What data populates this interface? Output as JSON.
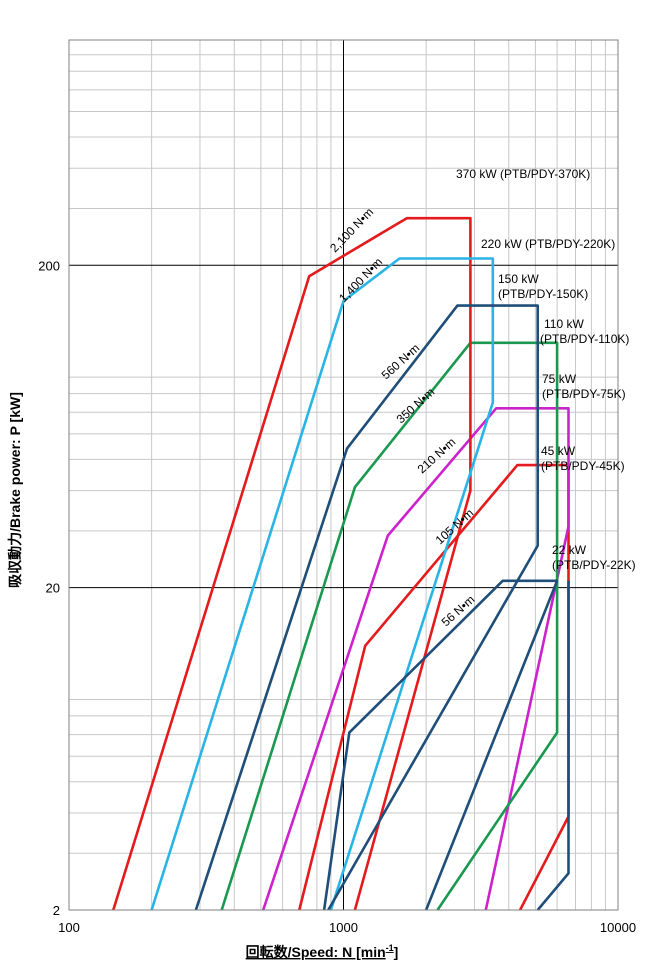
{
  "chart_data": {
    "type": "line",
    "x_scale": "log",
    "y_scale": "log",
    "xlim": [
      100,
      10000
    ],
    "ylim": [
      2,
      1000
    ],
    "xlabel": "回転数/Speed: N [min",
    "xlabel_sup": "-1",
    "xlabel_end": "]",
    "ylabel": "吸収動力/Brake power: P [kW]",
    "x_ticks": [
      {
        "v": 100,
        "label": "100"
      },
      {
        "v": 1000,
        "label": "1000"
      },
      {
        "v": 10000,
        "label": "10000"
      }
    ],
    "y_ticks": [
      {
        "v": 2,
        "label": "2"
      },
      {
        "v": 20,
        "label": "20"
      },
      {
        "v": 200,
        "label": "200"
      }
    ],
    "grid": true,
    "series": [
      {
        "color": "#e41a1c",
        "points": [
          [
            4400,
            2
          ],
          [
            6600,
            3.9
          ],
          [
            6600,
            48
          ],
          [
            4300,
            48
          ],
          [
            1200,
            13.2
          ],
          [
            690,
            2
          ]
        ]
      },
      {
        "color": "#cc22cc",
        "points": [
          [
            3300,
            2
          ],
          [
            6600,
            31
          ],
          [
            6600,
            72
          ],
          [
            3600,
            72
          ],
          [
            1450,
            29
          ],
          [
            510,
            2
          ]
        ]
      },
      {
        "color": "#1a9850",
        "points": [
          [
            2200,
            2
          ],
          [
            6000,
            7.1
          ],
          [
            6000,
            115
          ],
          [
            2900,
            115
          ],
          [
            1100,
            41
          ],
          [
            360,
            2
          ]
        ]
      },
      {
        "color": "#e41a1c",
        "points": [
          [
            1100,
            2
          ],
          [
            2900,
            40
          ],
          [
            2900,
            280
          ],
          [
            1700,
            280
          ],
          [
            750,
            185
          ],
          [
            145,
            2
          ]
        ]
      },
      {
        "color": "#29b4e6",
        "points": [
          [
            900,
            2
          ],
          [
            3500,
            75
          ],
          [
            3500,
            210
          ],
          [
            1600,
            210
          ],
          [
            1000,
            155
          ],
          [
            200,
            2
          ]
        ]
      },
      {
        "color": "#1f4e79",
        "points": [
          [
            2000,
            2
          ],
          [
            6000,
            21
          ],
          [
            3800,
            21
          ],
          [
            1050,
            7.1
          ],
          [
            850,
            2
          ]
        ]
      },
      {
        "color": "#1f4e79",
        "points": [
          [
            5100,
            2
          ],
          [
            6600,
            2.6
          ],
          [
            6600,
            21
          ],
          [
            6600,
            21
          ]
        ]
      },
      {
        "color": "#1f4e79",
        "points": [
          [
            880,
            2
          ],
          [
            5100,
            27
          ],
          [
            5100,
            150
          ],
          [
            2600,
            150
          ],
          [
            1030,
            54
          ],
          [
            290,
            2
          ]
        ]
      }
    ],
    "annotations": [
      {
        "l1": "370",
        "l2": "kW",
        "l3": "(PTB/PDY-370K)"
      },
      {
        "l1": "220",
        "l2": "kW",
        "l3": "(PTB/PDY-220K)"
      },
      {
        "l1": "150",
        "l2": "kW",
        "l3": "(PTB/PDY-150K)"
      },
      {
        "l1": "110",
        "l2": "kW",
        "l3": "(PTB/PDY-110K)"
      },
      {
        "l1": "75",
        "l2": "kW",
        "l3": "(PTB/PDY-75K)"
      },
      {
        "l1": "45",
        "l2": "kW",
        "l3": "(PTB/PDY-45K)"
      },
      {
        "l1": "22",
        "l2": "kW",
        "l3": "(PTB/PDY-22K)"
      }
    ],
    "torque_labels": [
      "2,100 N•m",
      "1,400 N•m",
      "560 N•m",
      "350 N•m",
      "210 N•m",
      "105 N•m",
      "56 N•m"
    ]
  }
}
